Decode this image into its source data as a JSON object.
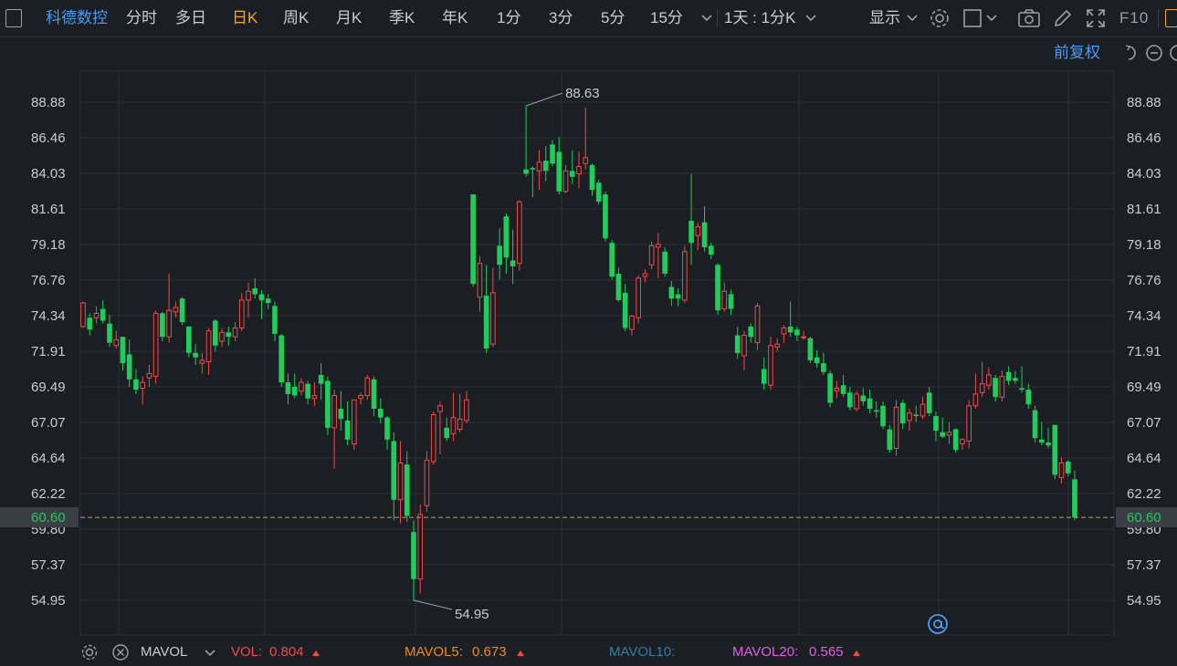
{
  "toolbar": {
    "stock_name": "科德数控",
    "periods": [
      "分时",
      "多日",
      "日K",
      "周K",
      "月K",
      "季K",
      "年K",
      "1分",
      "3分",
      "5分"
    ],
    "active_period": "日K",
    "dropdown_period": "15分",
    "multi_period": "1天 : 1分K",
    "display_label": "显示",
    "f10_label": "F10"
  },
  "adjust_label": "前复权",
  "colors": {
    "up": "#ef4b4b",
    "down": "#1fcc5c",
    "background": "#1b1e22",
    "grid": "#2c3036",
    "accent": "#4c9bf0",
    "active": "#f5a623",
    "mavol5": "#f08a1c",
    "mavol10": "#2f7fa8",
    "mavol20": "#e060e0"
  },
  "icons": [
    "settings-icon",
    "checkbox-icon",
    "camera-icon",
    "pencil-icon",
    "fullscreen-icon",
    "undo-icon",
    "zoom-out-icon",
    "zoom-in-icon",
    "close-icon",
    "at-icon"
  ],
  "chart_data": {
    "type": "candlestick",
    "ylim": [
      53.5,
      91.5
    ],
    "y_ticks": [
      "88.88",
      "86.46",
      "84.03",
      "81.61",
      "79.18",
      "76.76",
      "74.34",
      "71.91",
      "69.49",
      "67.07",
      "64.64",
      "62.22",
      "59.80",
      "57.37",
      "54.95"
    ],
    "last_price": "60.60",
    "max_label": "88.63",
    "min_label": "54.95",
    "candles": [
      {
        "o": 73.6,
        "h": 75.3,
        "l": 73.5,
        "c": 75.2
      },
      {
        "o": 74.2,
        "h": 74.5,
        "l": 73.0,
        "c": 73.4
      },
      {
        "o": 74.2,
        "h": 75.0,
        "l": 73.8,
        "c": 74.5
      },
      {
        "o": 74.8,
        "h": 75.4,
        "l": 73.8,
        "c": 74.0
      },
      {
        "o": 73.8,
        "h": 74.4,
        "l": 72.2,
        "c": 72.5
      },
      {
        "o": 72.3,
        "h": 73.3,
        "l": 72.1,
        "c": 72.7
      },
      {
        "o": 72.9,
        "h": 72.9,
        "l": 70.6,
        "c": 71.1
      },
      {
        "o": 71.7,
        "h": 72.7,
        "l": 69.5,
        "c": 70.0
      },
      {
        "o": 70.0,
        "h": 70.7,
        "l": 69.0,
        "c": 69.3
      },
      {
        "o": 69.4,
        "h": 70.2,
        "l": 68.3,
        "c": 69.8
      },
      {
        "o": 70.1,
        "h": 71.0,
        "l": 69.5,
        "c": 70.4
      },
      {
        "o": 70.2,
        "h": 74.7,
        "l": 69.7,
        "c": 74.5
      },
      {
        "o": 74.5,
        "h": 74.6,
        "l": 72.6,
        "c": 72.9
      },
      {
        "o": 72.9,
        "h": 77.2,
        "l": 72.5,
        "c": 74.7
      },
      {
        "o": 74.6,
        "h": 75.3,
        "l": 74.2,
        "c": 74.9
      },
      {
        "o": 75.5,
        "h": 75.6,
        "l": 73.7,
        "c": 73.9
      },
      {
        "o": 73.6,
        "h": 73.6,
        "l": 71.5,
        "c": 71.8
      },
      {
        "o": 71.8,
        "h": 72.4,
        "l": 71.0,
        "c": 71.5
      },
      {
        "o": 71.1,
        "h": 71.8,
        "l": 70.4,
        "c": 71.3
      },
      {
        "o": 71.2,
        "h": 73.5,
        "l": 70.3,
        "c": 73.3
      },
      {
        "o": 74.0,
        "h": 74.1,
        "l": 71.9,
        "c": 72.3
      },
      {
        "o": 72.6,
        "h": 73.5,
        "l": 72.2,
        "c": 73.2
      },
      {
        "o": 73.2,
        "h": 73.6,
        "l": 72.3,
        "c": 72.9
      },
      {
        "o": 72.9,
        "h": 73.9,
        "l": 72.6,
        "c": 73.5
      },
      {
        "o": 73.5,
        "h": 75.9,
        "l": 73.3,
        "c": 75.4
      },
      {
        "o": 75.4,
        "h": 76.6,
        "l": 74.2,
        "c": 76.0
      },
      {
        "o": 76.2,
        "h": 76.9,
        "l": 75.5,
        "c": 75.8
      },
      {
        "o": 75.8,
        "h": 76.1,
        "l": 74.1,
        "c": 75.4
      },
      {
        "o": 75.5,
        "h": 75.8,
        "l": 74.8,
        "c": 75.2
      },
      {
        "o": 75.0,
        "h": 75.3,
        "l": 72.6,
        "c": 73.1
      },
      {
        "o": 73.0,
        "h": 73.1,
        "l": 69.5,
        "c": 69.8
      },
      {
        "o": 69.8,
        "h": 70.4,
        "l": 68.3,
        "c": 69.0
      },
      {
        "o": 69.5,
        "h": 70.4,
        "l": 68.7,
        "c": 68.9
      },
      {
        "o": 69.2,
        "h": 70.1,
        "l": 68.9,
        "c": 69.8
      },
      {
        "o": 69.7,
        "h": 69.9,
        "l": 68.3,
        "c": 68.7
      },
      {
        "o": 68.7,
        "h": 69.8,
        "l": 68.2,
        "c": 68.9
      },
      {
        "o": 70.3,
        "h": 71.1,
        "l": 68.6,
        "c": 69.7
      },
      {
        "o": 69.9,
        "h": 70.2,
        "l": 66.2,
        "c": 66.7
      },
      {
        "o": 66.7,
        "h": 69.3,
        "l": 63.9,
        "c": 68.9
      },
      {
        "o": 68.0,
        "h": 69.2,
        "l": 66.5,
        "c": 67.3
      },
      {
        "o": 67.2,
        "h": 68.5,
        "l": 65.5,
        "c": 65.9
      },
      {
        "o": 65.6,
        "h": 68.6,
        "l": 65.2,
        "c": 68.6
      },
      {
        "o": 68.7,
        "h": 69.1,
        "l": 68.3,
        "c": 68.9
      },
      {
        "o": 68.9,
        "h": 70.3,
        "l": 68.6,
        "c": 70.1
      },
      {
        "o": 70.0,
        "h": 70.2,
        "l": 67.5,
        "c": 68.0
      },
      {
        "o": 68.0,
        "h": 68.7,
        "l": 67.0,
        "c": 67.4
      },
      {
        "o": 67.4,
        "h": 67.5,
        "l": 65.2,
        "c": 65.9
      },
      {
        "o": 65.8,
        "h": 66.4,
        "l": 60.4,
        "c": 61.8
      },
      {
        "o": 61.8,
        "h": 65.8,
        "l": 60.2,
        "c": 64.3
      },
      {
        "o": 64.2,
        "h": 65.1,
        "l": 60.3,
        "c": 60.7
      },
      {
        "o": 59.6,
        "h": 60.4,
        "l": 54.95,
        "c": 56.4
      },
      {
        "o": 56.4,
        "h": 61.5,
        "l": 55.4,
        "c": 60.8
      },
      {
        "o": 61.4,
        "h": 65.1,
        "l": 61.0,
        "c": 64.5
      },
      {
        "o": 64.4,
        "h": 67.8,
        "l": 64.2,
        "c": 67.6
      },
      {
        "o": 67.8,
        "h": 68.5,
        "l": 64.9,
        "c": 68.2
      },
      {
        "o": 66.7,
        "h": 67.4,
        "l": 65.8,
        "c": 66.0
      },
      {
        "o": 66.3,
        "h": 69.1,
        "l": 65.8,
        "c": 67.4
      },
      {
        "o": 66.6,
        "h": 69.0,
        "l": 66.4,
        "c": 67.3
      },
      {
        "o": 67.2,
        "h": 69.2,
        "l": 67.0,
        "c": 68.6
      },
      {
        "o": 82.6,
        "h": 82.6,
        "l": 76.3,
        "c": 76.5
      },
      {
        "o": 75.6,
        "h": 78.4,
        "l": 74.6,
        "c": 77.9
      },
      {
        "o": 75.7,
        "h": 77.8,
        "l": 71.8,
        "c": 72.1
      },
      {
        "o": 72.4,
        "h": 77.6,
        "l": 72.2,
        "c": 75.9
      },
      {
        "o": 79.1,
        "h": 80.3,
        "l": 76.8,
        "c": 77.8
      },
      {
        "o": 81.1,
        "h": 81.3,
        "l": 77.2,
        "c": 78.3
      },
      {
        "o": 78.1,
        "h": 80.2,
        "l": 76.5,
        "c": 77.7
      },
      {
        "o": 77.9,
        "h": 82.2,
        "l": 77.4,
        "c": 82.1
      },
      {
        "o": 84.3,
        "h": 88.63,
        "l": 83.8,
        "c": 84.0
      },
      {
        "o": 84.4,
        "h": 84.5,
        "l": 82.4,
        "c": 84.3
      },
      {
        "o": 84.2,
        "h": 85.6,
        "l": 82.9,
        "c": 84.8
      },
      {
        "o": 84.9,
        "h": 85.9,
        "l": 83.5,
        "c": 84.2
      },
      {
        "o": 86.0,
        "h": 86.3,
        "l": 84.5,
        "c": 84.7
      },
      {
        "o": 85.5,
        "h": 86.5,
        "l": 82.6,
        "c": 82.8
      },
      {
        "o": 82.8,
        "h": 84.6,
        "l": 82.7,
        "c": 84.2
      },
      {
        "o": 84.2,
        "h": 85.6,
        "l": 83.3,
        "c": 83.8
      },
      {
        "o": 84.0,
        "h": 85.5,
        "l": 83.0,
        "c": 84.5
      },
      {
        "o": 84.7,
        "h": 88.5,
        "l": 84.3,
        "c": 85.1
      },
      {
        "o": 84.6,
        "h": 84.7,
        "l": 82.5,
        "c": 82.9
      },
      {
        "o": 83.4,
        "h": 83.6,
        "l": 81.9,
        "c": 82.1
      },
      {
        "o": 82.6,
        "h": 82.8,
        "l": 79.4,
        "c": 79.6
      },
      {
        "o": 79.3,
        "h": 79.5,
        "l": 76.8,
        "c": 77.0
      },
      {
        "o": 77.2,
        "h": 77.6,
        "l": 75.3,
        "c": 75.4
      },
      {
        "o": 75.9,
        "h": 76.5,
        "l": 73.3,
        "c": 73.5
      },
      {
        "o": 73.4,
        "h": 74.4,
        "l": 73.0,
        "c": 74.3
      },
      {
        "o": 74.2,
        "h": 77.1,
        "l": 73.8,
        "c": 76.9
      },
      {
        "o": 77.0,
        "h": 77.5,
        "l": 76.6,
        "c": 77.2
      },
      {
        "o": 77.8,
        "h": 79.4,
        "l": 77.5,
        "c": 79.1
      },
      {
        "o": 79.0,
        "h": 80.0,
        "l": 76.9,
        "c": 79.2
      },
      {
        "o": 78.7,
        "h": 79.0,
        "l": 77.0,
        "c": 77.2
      },
      {
        "o": 76.3,
        "h": 76.7,
        "l": 75.0,
        "c": 75.5
      },
      {
        "o": 75.8,
        "h": 76.2,
        "l": 75.0,
        "c": 75.5
      },
      {
        "o": 75.4,
        "h": 79.1,
        "l": 75.2,
        "c": 78.7
      },
      {
        "o": 80.8,
        "h": 84.0,
        "l": 77.8,
        "c": 79.3
      },
      {
        "o": 79.8,
        "h": 80.7,
        "l": 78.8,
        "c": 80.4
      },
      {
        "o": 80.7,
        "h": 81.8,
        "l": 78.7,
        "c": 79.0
      },
      {
        "o": 79.1,
        "h": 79.3,
        "l": 78.2,
        "c": 78.5
      },
      {
        "o": 77.8,
        "h": 77.9,
        "l": 74.4,
        "c": 74.7
      },
      {
        "o": 74.8,
        "h": 76.6,
        "l": 74.6,
        "c": 76.0
      },
      {
        "o": 75.8,
        "h": 76.1,
        "l": 74.4,
        "c": 74.8
      },
      {
        "o": 73.0,
        "h": 73.6,
        "l": 71.4,
        "c": 71.8
      },
      {
        "o": 71.6,
        "h": 73.3,
        "l": 70.6,
        "c": 73.0
      },
      {
        "o": 73.6,
        "h": 73.8,
        "l": 72.5,
        "c": 72.9
      },
      {
        "o": 72.5,
        "h": 75.2,
        "l": 72.0,
        "c": 75.0
      },
      {
        "o": 70.7,
        "h": 71.5,
        "l": 69.3,
        "c": 69.7
      },
      {
        "o": 69.6,
        "h": 72.9,
        "l": 69.3,
        "c": 72.3
      },
      {
        "o": 72.2,
        "h": 72.8,
        "l": 71.9,
        "c": 72.4
      },
      {
        "o": 73.1,
        "h": 73.7,
        "l": 72.5,
        "c": 73.5
      },
      {
        "o": 73.6,
        "h": 75.3,
        "l": 72.9,
        "c": 73.2
      },
      {
        "o": 73.4,
        "h": 73.6,
        "l": 72.6,
        "c": 73.0
      },
      {
        "o": 72.9,
        "h": 73.3,
        "l": 72.7,
        "c": 72.9
      },
      {
        "o": 72.8,
        "h": 72.9,
        "l": 71.1,
        "c": 71.3
      },
      {
        "o": 71.5,
        "h": 72.0,
        "l": 70.8,
        "c": 71.1
      },
      {
        "o": 71.1,
        "h": 71.8,
        "l": 70.3,
        "c": 70.5
      },
      {
        "o": 70.4,
        "h": 70.6,
        "l": 68.1,
        "c": 68.4
      },
      {
        "o": 69.2,
        "h": 69.9,
        "l": 68.7,
        "c": 69.4
      },
      {
        "o": 69.6,
        "h": 70.3,
        "l": 68.8,
        "c": 69.0
      },
      {
        "o": 69.1,
        "h": 69.5,
        "l": 67.9,
        "c": 68.1
      },
      {
        "o": 68.0,
        "h": 69.2,
        "l": 67.8,
        "c": 69.0
      },
      {
        "o": 68.9,
        "h": 69.4,
        "l": 68.2,
        "c": 68.5
      },
      {
        "o": 68.7,
        "h": 69.3,
        "l": 67.7,
        "c": 68.0
      },
      {
        "o": 67.9,
        "h": 68.5,
        "l": 67.4,
        "c": 67.8
      },
      {
        "o": 68.2,
        "h": 68.5,
        "l": 66.6,
        "c": 66.8
      },
      {
        "o": 66.6,
        "h": 66.9,
        "l": 65.0,
        "c": 65.2
      },
      {
        "o": 65.3,
        "h": 68.6,
        "l": 64.8,
        "c": 68.1
      },
      {
        "o": 68.4,
        "h": 68.6,
        "l": 66.6,
        "c": 67.0
      },
      {
        "o": 67.2,
        "h": 68.0,
        "l": 66.5,
        "c": 67.7
      },
      {
        "o": 67.6,
        "h": 68.2,
        "l": 67.1,
        "c": 67.5
      },
      {
        "o": 67.5,
        "h": 68.8,
        "l": 67.3,
        "c": 68.3
      },
      {
        "o": 69.1,
        "h": 69.5,
        "l": 67.5,
        "c": 67.7
      },
      {
        "o": 67.5,
        "h": 67.8,
        "l": 65.8,
        "c": 66.5
      },
      {
        "o": 66.4,
        "h": 67.4,
        "l": 66.0,
        "c": 66.1
      },
      {
        "o": 66.2,
        "h": 67.1,
        "l": 65.6,
        "c": 66.4
      },
      {
        "o": 66.6,
        "h": 66.7,
        "l": 65.0,
        "c": 65.2
      },
      {
        "o": 65.6,
        "h": 66.0,
        "l": 65.2,
        "c": 65.9
      },
      {
        "o": 65.8,
        "h": 68.6,
        "l": 65.3,
        "c": 68.2
      },
      {
        "o": 68.2,
        "h": 70.4,
        "l": 68.0,
        "c": 69.0
      },
      {
        "o": 69.1,
        "h": 71.2,
        "l": 68.8,
        "c": 69.7
      },
      {
        "o": 69.6,
        "h": 70.8,
        "l": 69.3,
        "c": 70.3
      },
      {
        "o": 70.1,
        "h": 70.3,
        "l": 68.5,
        "c": 68.8
      },
      {
        "o": 68.8,
        "h": 70.6,
        "l": 68.5,
        "c": 70.2
      },
      {
        "o": 70.5,
        "h": 70.9,
        "l": 69.6,
        "c": 69.9
      },
      {
        "o": 70.1,
        "h": 70.6,
        "l": 69.7,
        "c": 69.9
      },
      {
        "o": 69.4,
        "h": 70.9,
        "l": 69.1,
        "c": 69.3
      },
      {
        "o": 69.3,
        "h": 69.7,
        "l": 68.0,
        "c": 68.3
      },
      {
        "o": 67.9,
        "h": 68.2,
        "l": 65.7,
        "c": 66.0
      },
      {
        "o": 65.9,
        "h": 67.1,
        "l": 65.5,
        "c": 65.7
      },
      {
        "o": 65.7,
        "h": 66.7,
        "l": 65.3,
        "c": 65.5
      },
      {
        "o": 66.9,
        "h": 66.9,
        "l": 63.2,
        "c": 63.5
      },
      {
        "o": 63.3,
        "h": 64.7,
        "l": 62.9,
        "c": 64.3
      },
      {
        "o": 64.4,
        "h": 64.5,
        "l": 63.4,
        "c": 63.6
      },
      {
        "o": 63.2,
        "h": 63.8,
        "l": 60.4,
        "c": 60.6
      }
    ]
  },
  "indicator": {
    "name": "MAVOL",
    "vol_label": "VOL:",
    "vol_value": "0.804",
    "mavol5_label": "MAVOL5:",
    "mavol5_value": "0.673",
    "mavol10_label": "MAVOL10:",
    "mavol20_label": "MAVOL20:",
    "mavol20_value": "0.565"
  }
}
